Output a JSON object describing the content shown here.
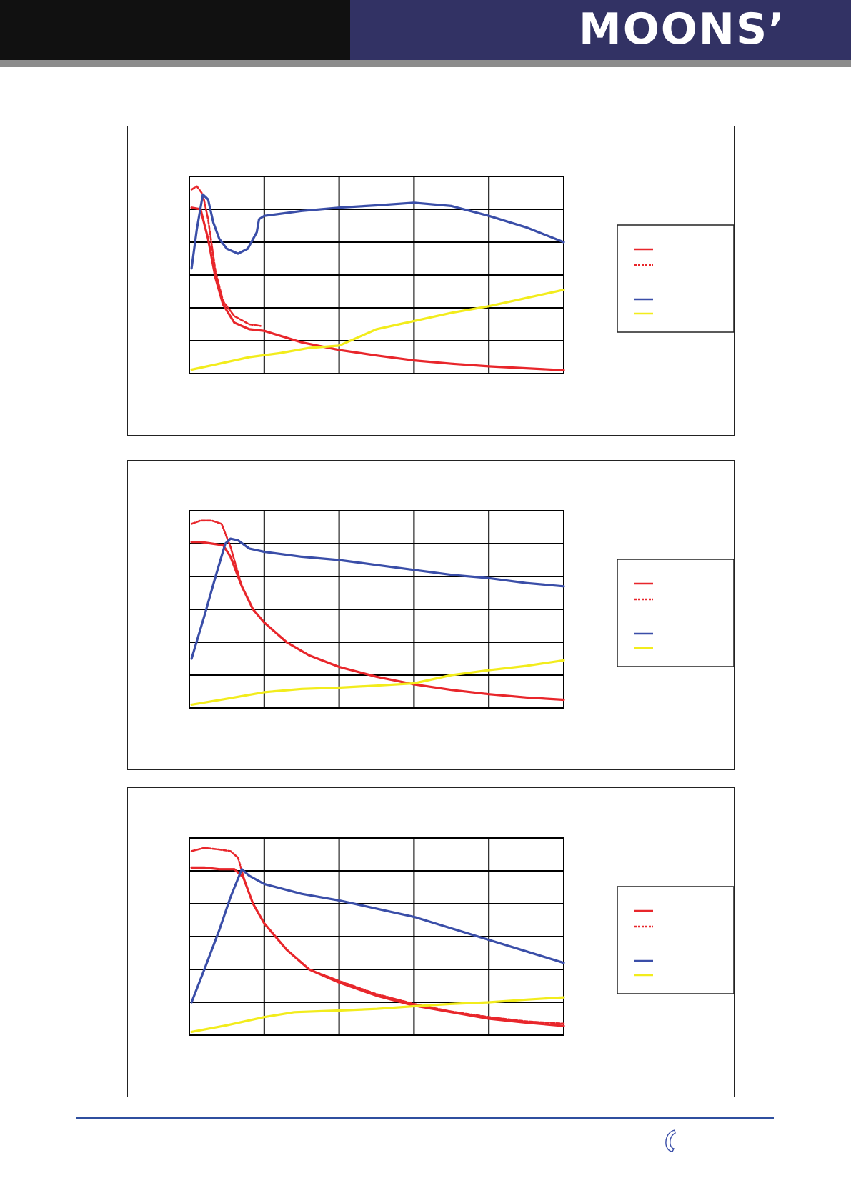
{
  "header": {
    "logo_text": "MOONS’",
    "colors": {
      "left_bar": "#111111",
      "right_bar": "#323264",
      "rule": "#8c8c8c"
    }
  },
  "series_colors": {
    "pull_out_solid": "#e8262b",
    "pull_out_dashed": "#e8262b",
    "blue_curve": "#3a4ea8",
    "yellow_curve": "#f2ec1c"
  },
  "footer": {
    "rule_color": "#2f4f9f",
    "icon": "phone-icon"
  },
  "chart_data": [
    {
      "type": "line",
      "grid": true,
      "xlim": [
        0,
        5
      ],
      "ylim": [
        0,
        6
      ],
      "series": [
        {
          "style": "solid",
          "color": "#e8262b",
          "x": [
            0.03,
            0.15,
            0.25,
            0.35,
            0.45,
            0.6,
            0.8,
            1.0,
            1.5,
            2.0,
            2.5,
            3.0,
            3.5,
            4.0,
            4.5,
            5.0
          ],
          "y": [
            5.05,
            5.0,
            4.1,
            2.9,
            2.1,
            1.55,
            1.35,
            1.3,
            0.95,
            0.72,
            0.55,
            0.4,
            0.3,
            0.22,
            0.16,
            0.1
          ]
        },
        {
          "style": "dashed",
          "color": "#e8262b",
          "x": [
            0.03,
            0.1,
            0.18,
            0.25,
            0.35,
            0.45,
            0.6,
            0.8,
            0.95
          ],
          "y": [
            5.6,
            5.7,
            5.45,
            4.7,
            3.1,
            2.2,
            1.75,
            1.5,
            1.45
          ]
        },
        {
          "style": "solid",
          "color": "#3a4ea8",
          "x": [
            0.03,
            0.1,
            0.18,
            0.25,
            0.32,
            0.4,
            0.5,
            0.65,
            0.78,
            0.9,
            0.93,
            1.0,
            1.5,
            2.0,
            2.5,
            3.0,
            3.5,
            4.0,
            4.5,
            5.0
          ],
          "y": [
            3.2,
            4.4,
            5.45,
            5.3,
            4.6,
            4.1,
            3.8,
            3.65,
            3.8,
            4.3,
            4.7,
            4.8,
            4.95,
            5.05,
            5.12,
            5.2,
            5.1,
            4.8,
            4.45,
            4.0
          ]
        },
        {
          "style": "solid",
          "color": "#f2ec1c",
          "x": [
            0.03,
            0.4,
            0.8,
            1.2,
            1.6,
            2.0,
            2.2,
            2.5,
            2.8,
            3.0,
            3.5,
            4.0,
            4.5,
            5.0
          ],
          "y": [
            0.12,
            0.3,
            0.5,
            0.62,
            0.78,
            0.85,
            1.05,
            1.35,
            1.5,
            1.6,
            1.85,
            2.05,
            2.3,
            2.55
          ]
        }
      ]
    },
    {
      "type": "line",
      "grid": true,
      "xlim": [
        0,
        5
      ],
      "ylim": [
        0,
        6
      ],
      "series": [
        {
          "style": "solid",
          "color": "#e8262b",
          "x": [
            0.03,
            0.15,
            0.3,
            0.45,
            0.55,
            0.7,
            0.85,
            1.0,
            1.3,
            1.6,
            2.0,
            2.5,
            3.0,
            3.5,
            4.0,
            4.5,
            5.0
          ],
          "y": [
            5.05,
            5.05,
            5.0,
            4.95,
            4.6,
            3.7,
            3.0,
            2.6,
            2.0,
            1.6,
            1.25,
            0.95,
            0.72,
            0.55,
            0.42,
            0.32,
            0.25
          ]
        },
        {
          "style": "dashed",
          "color": "#e8262b",
          "x": [
            0.03,
            0.15,
            0.3,
            0.43,
            0.55,
            0.7,
            0.85,
            1.0,
            1.3,
            1.6,
            2.0,
            2.5,
            3.0,
            3.5,
            4.0,
            4.5,
            5.0
          ],
          "y": [
            5.6,
            5.7,
            5.7,
            5.6,
            4.9,
            3.7,
            3.0,
            2.6,
            2.0,
            1.6,
            1.25,
            0.95,
            0.72,
            0.55,
            0.42,
            0.32,
            0.25
          ]
        },
        {
          "style": "solid",
          "color": "#3a4ea8",
          "x": [
            0.03,
            0.2,
            0.35,
            0.48,
            0.55,
            0.65,
            0.8,
            1.0,
            1.5,
            2.0,
            2.5,
            3.0,
            3.5,
            4.0,
            4.5,
            5.0
          ],
          "y": [
            1.5,
            2.8,
            4.0,
            5.0,
            5.15,
            5.1,
            4.85,
            4.75,
            4.6,
            4.5,
            4.35,
            4.2,
            4.05,
            3.95,
            3.8,
            3.7
          ]
        },
        {
          "style": "solid",
          "color": "#f2ec1c",
          "x": [
            0.03,
            0.5,
            1.0,
            1.5,
            2.0,
            2.5,
            3.0,
            3.5,
            4.0,
            4.5,
            5.0
          ],
          "y": [
            0.1,
            0.28,
            0.48,
            0.58,
            0.62,
            0.68,
            0.75,
            1.0,
            1.15,
            1.28,
            1.45
          ]
        }
      ]
    },
    {
      "type": "line",
      "grid": true,
      "xlim": [
        0,
        5
      ],
      "ylim": [
        0,
        6
      ],
      "series": [
        {
          "style": "solid",
          "color": "#e8262b",
          "x": [
            0.03,
            0.2,
            0.4,
            0.6,
            0.72,
            0.85,
            1.0,
            1.3,
            1.6,
            2.0,
            2.5,
            3.0,
            3.5,
            4.0,
            4.5,
            5.0
          ],
          "y": [
            5.1,
            5.1,
            5.05,
            5.05,
            4.8,
            4.0,
            3.4,
            2.6,
            2.0,
            1.6,
            1.2,
            0.9,
            0.7,
            0.5,
            0.38,
            0.28
          ]
        },
        {
          "style": "dashed",
          "color": "#e8262b",
          "x": [
            0.03,
            0.2,
            0.4,
            0.55,
            0.65,
            0.75,
            0.85,
            1.0,
            1.3,
            1.6,
            2.0,
            2.5,
            3.0,
            3.5,
            4.0,
            4.5,
            5.0
          ],
          "y": [
            5.6,
            5.7,
            5.65,
            5.6,
            5.4,
            4.6,
            4.0,
            3.4,
            2.6,
            2.0,
            1.65,
            1.25,
            0.95,
            0.72,
            0.55,
            0.42,
            0.35
          ]
        },
        {
          "style": "solid",
          "color": "#3a4ea8",
          "x": [
            0.03,
            0.2,
            0.4,
            0.55,
            0.7,
            0.8,
            1.0,
            1.5,
            2.0,
            2.5,
            3.0,
            3.5,
            4.0,
            4.5,
            5.0
          ],
          "y": [
            1.0,
            2.0,
            3.2,
            4.2,
            5.05,
            4.85,
            4.6,
            4.3,
            4.1,
            3.85,
            3.6,
            3.25,
            2.9,
            2.55,
            2.2
          ]
        },
        {
          "style": "solid",
          "color": "#f2ec1c",
          "x": [
            0.03,
            0.5,
            1.0,
            1.4,
            2.0,
            2.5,
            3.0,
            3.5,
            4.0,
            4.5,
            5.0
          ],
          "y": [
            0.1,
            0.3,
            0.55,
            0.7,
            0.75,
            0.8,
            0.88,
            0.95,
            1.0,
            1.08,
            1.15
          ]
        }
      ]
    }
  ]
}
